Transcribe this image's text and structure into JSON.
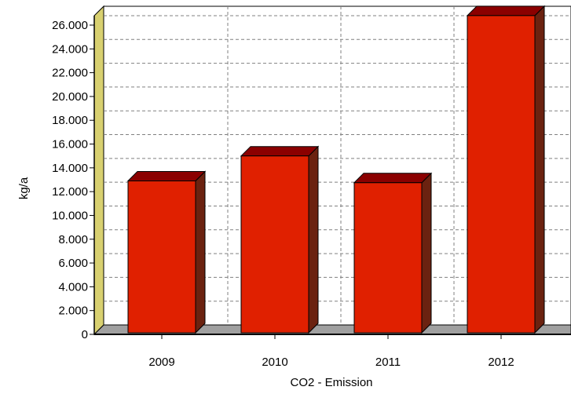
{
  "chart_data": {
    "type": "bar",
    "categories": [
      "2009",
      "2010",
      "2011",
      "2012"
    ],
    "values": [
      12900,
      15000,
      12750,
      26800
    ],
    "title": "",
    "xlabel": "CO2 - Emission",
    "ylabel": "kg/a",
    "ylim": [
      0,
      27000
    ],
    "yticks": [
      0,
      2000,
      4000,
      6000,
      8000,
      10000,
      12000,
      14000,
      16000,
      18000,
      20000,
      22000,
      24000,
      26000
    ],
    "ytick_labels": [
      "0",
      "2.000",
      "4.000",
      "6.000",
      "8.000",
      "10.000",
      "12.000",
      "14.000",
      "16.000",
      "18.000",
      "20.000",
      "22.000",
      "24.000",
      "26.000"
    ],
    "grid": true,
    "style": "3d",
    "colors": {
      "bar_front": "#e02000",
      "bar_top": "#8b0000",
      "bar_side": "#6b2210",
      "wall": "#d8d070",
      "floor": "#a0a0a0",
      "grid": "#808080"
    }
  }
}
